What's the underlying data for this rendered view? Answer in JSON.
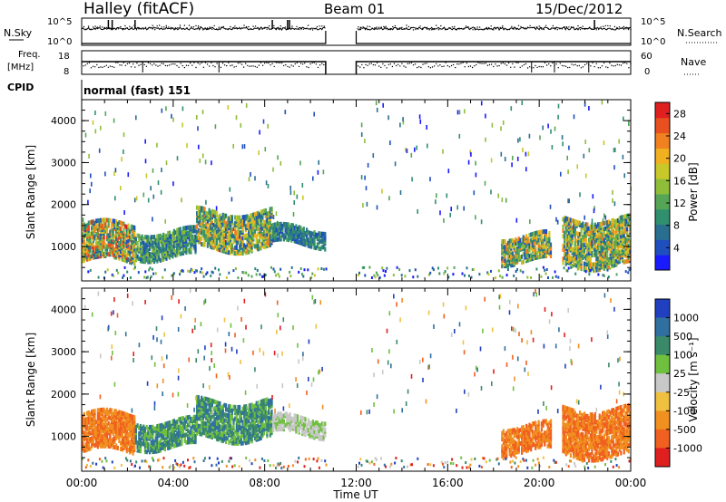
{
  "header": {
    "station": "Halley (fitACF)",
    "beam": "Beam 01",
    "date": "15/Dec/2012"
  },
  "strip_labels": {
    "nsky": "N.Sky",
    "nsky_ticks": [
      "10^5",
      "10^0"
    ],
    "nsearch": "N.Search",
    "nsearch_ticks": [
      "10^5",
      "10^0"
    ],
    "freq_line1": "Freq.",
    "freq_line2": "[MHz]",
    "freq_ticks": [
      "18",
      "8"
    ],
    "nave": "Nave",
    "nave_ticks": [
      "60",
      "0"
    ],
    "cpid": "CPID",
    "cpid_value": "normal (fast) 151"
  },
  "chart_data": [
    {
      "type": "heatmap",
      "panel": "power",
      "ylabel": "Slant Range [km]",
      "xlabel": "",
      "xlim": [
        "00:00",
        "24:00"
      ],
      "ylim": [
        180,
        4500
      ],
      "yticks": [
        "1000",
        "2000",
        "3000",
        "4000"
      ],
      "colorbar": {
        "label": "Power [dB]",
        "ticks": [
          "4",
          "8",
          "12",
          "16",
          "20",
          "24",
          "28"
        ],
        "range": [
          0,
          30
        ],
        "colors": [
          "#1a1aff",
          "#1f4fbf",
          "#2a6f8f",
          "#2f8f6f",
          "#56a556",
          "#8fbd3a",
          "#c8c82a",
          "#f0b020",
          "#f08020",
          "#e85020",
          "#e02020"
        ]
      },
      "data_gap": [
        "10:40",
        "12:00"
      ],
      "echo_regions": [
        {
          "t_start": "00:00",
          "t_end": "02:20",
          "range_km": [
            600,
            1500
          ],
          "power_db": [
            4,
            28
          ]
        },
        {
          "t_start": "02:20",
          "t_end": "05:00",
          "range_km": [
            700,
            1300
          ],
          "power_db": [
            4,
            16
          ]
        },
        {
          "t_start": "05:00",
          "t_end": "08:20",
          "range_km": [
            900,
            1800
          ],
          "power_db": [
            4,
            24
          ]
        },
        {
          "t_start": "08:20",
          "t_end": "10:40",
          "range_km": [
            1000,
            1400
          ],
          "power_db": [
            4,
            12
          ]
        },
        {
          "t_start": "18:20",
          "t_end": "20:30",
          "range_km": [
            600,
            1200
          ],
          "power_db": [
            4,
            24
          ]
        },
        {
          "t_start": "21:00",
          "t_end": "24:00",
          "range_km": [
            500,
            1600
          ],
          "power_db": [
            4,
            24
          ]
        }
      ]
    },
    {
      "type": "heatmap",
      "panel": "velocity",
      "ylabel": "Slant Range [km]",
      "xlabel": "Time UT",
      "xlim": [
        "00:00",
        "24:00"
      ],
      "ylim": [
        180,
        4500
      ],
      "xticks": [
        "00:00",
        "04:00",
        "08:00",
        "12:00",
        "16:00",
        "20:00",
        "00:00"
      ],
      "yticks": [
        "1000",
        "2000",
        "3000",
        "4000"
      ],
      "colorbar": {
        "label": "Velocity [m s⁻¹]",
        "ticks": [
          "1000",
          "500",
          "100",
          "25",
          "-25",
          "-100",
          "-500",
          "-1000"
        ],
        "colors": [
          "#2040c0",
          "#3070a0",
          "#3a8a6a",
          "#70c040",
          "#c8c8c8",
          "#f0c040",
          "#f09020",
          "#f06020",
          "#e02020"
        ]
      },
      "data_gap": [
        "10:40",
        "12:00"
      ],
      "echo_regions": [
        {
          "t_start": "00:00",
          "t_end": "02:20",
          "range_km": [
            600,
            1500
          ],
          "velocity": "-100 to -500"
        },
        {
          "t_start": "02:20",
          "t_end": "05:00",
          "range_km": [
            700,
            1300
          ],
          "velocity": "25 to 500"
        },
        {
          "t_start": "05:00",
          "t_end": "08:20",
          "range_km": [
            900,
            1800
          ],
          "velocity": "100 to 500"
        },
        {
          "t_start": "08:20",
          "t_end": "10:40",
          "range_km": [
            1000,
            1400
          ],
          "velocity": "-25 to 25"
        },
        {
          "t_start": "18:20",
          "t_end": "20:30",
          "range_km": [
            600,
            1200
          ],
          "velocity": "-100 to -500"
        },
        {
          "t_start": "21:00",
          "t_end": "24:00",
          "range_km": [
            500,
            1600
          ],
          "velocity": "-100 to -500"
        }
      ]
    }
  ]
}
